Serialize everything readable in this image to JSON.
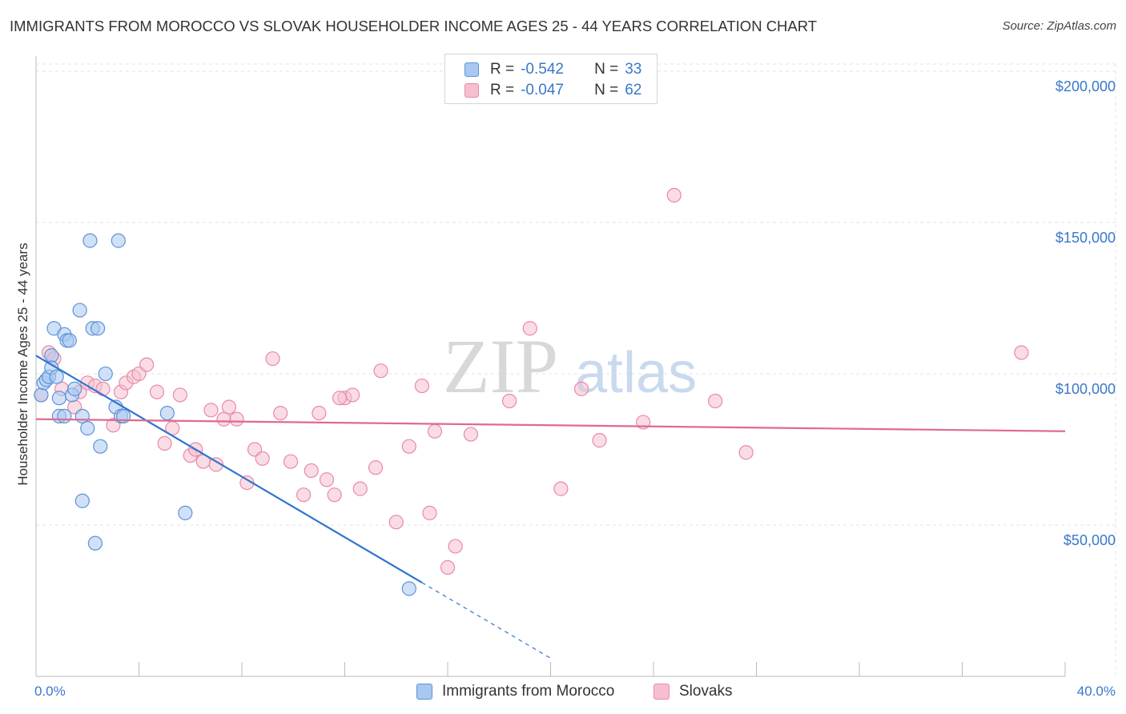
{
  "header": {
    "title": "IMMIGRANTS FROM MOROCCO VS SLOVAK HOUSEHOLDER INCOME AGES 25 - 44 YEARS CORRELATION CHART",
    "source": "Source: ZipAtlas.com"
  },
  "watermark": {
    "zip": "ZIP",
    "atlas": "atlas"
  },
  "legend": {
    "rows": [
      {
        "r_label": "R =",
        "r_value": "-0.542",
        "n_label": "N =",
        "n_value": "33"
      },
      {
        "r_label": "R =",
        "r_value": "-0.047",
        "n_label": "N =",
        "n_value": "62"
      }
    ]
  },
  "bottom_legend": [
    {
      "label": "Immigrants from Morocco"
    },
    {
      "label": "Slovaks"
    }
  ],
  "colors": {
    "blue_fill": "#a9c8f0",
    "blue_stroke": "#5b93d8",
    "blue_line": "#2f74d0",
    "pink_fill": "#f6bfd0",
    "pink_stroke": "#e88aa8",
    "pink_line": "#e06990",
    "axis_text": "#3a78c9"
  },
  "chart_data": {
    "type": "scatter",
    "title": "IMMIGRANTS FROM MOROCCO VS SLOVAK HOUSEHOLDER INCOME AGES 25 - 44 YEARS CORRELATION CHART",
    "xlabel": "",
    "ylabel": "Householder Income Ages 25 - 44 years",
    "xlim": [
      0,
      40
    ],
    "ylim": [
      0,
      205000
    ],
    "x_ticks": [
      {
        "value": 0,
        "label": "0.0%"
      },
      {
        "value": 40,
        "label": "40.0%"
      }
    ],
    "y_ticks": [
      {
        "value": 50000,
        "label": "$50,000"
      },
      {
        "value": 100000,
        "label": "$100,000"
      },
      {
        "value": 150000,
        "label": "$150,000"
      },
      {
        "value": 200000,
        "label": "$200,000"
      }
    ],
    "grid": true,
    "series": [
      {
        "name": "Immigrants from Morocco",
        "color": "blue",
        "points": [
          [
            0.2,
            93000
          ],
          [
            0.3,
            97000
          ],
          [
            0.4,
            98000
          ],
          [
            0.5,
            99000
          ],
          [
            0.6,
            106000
          ],
          [
            0.6,
            102000
          ],
          [
            0.7,
            115000
          ],
          [
            0.8,
            99000
          ],
          [
            0.9,
            92000
          ],
          [
            0.9,
            86000
          ],
          [
            1.1,
            86000
          ],
          [
            1.1,
            113000
          ],
          [
            1.2,
            111000
          ],
          [
            1.3,
            111000
          ],
          [
            1.4,
            93000
          ],
          [
            1.5,
            95000
          ],
          [
            1.7,
            121000
          ],
          [
            1.8,
            86000
          ],
          [
            2.0,
            82000
          ],
          [
            2.1,
            144000
          ],
          [
            2.2,
            115000
          ],
          [
            2.3,
            44000
          ],
          [
            2.4,
            115000
          ],
          [
            2.5,
            76000
          ],
          [
            1.8,
            58000
          ],
          [
            2.7,
            100000
          ],
          [
            3.1,
            89000
          ],
          [
            3.2,
            144000
          ],
          [
            3.3,
            86000
          ],
          [
            3.4,
            86000
          ],
          [
            5.1,
            87000
          ],
          [
            5.8,
            54000
          ],
          [
            14.5,
            29000
          ]
        ],
        "trend": {
          "x": [
            0,
            15.0
          ],
          "y": [
            106000,
            31000
          ],
          "dashed_to": {
            "x": 20,
            "y": 6000
          }
        }
      },
      {
        "name": "Slovaks",
        "color": "pink",
        "points": [
          [
            0.2,
            93000
          ],
          [
            0.5,
            107000
          ],
          [
            0.7,
            105000
          ],
          [
            1.0,
            95000
          ],
          [
            1.5,
            89000
          ],
          [
            1.7,
            94000
          ],
          [
            2.0,
            97000
          ],
          [
            2.3,
            96000
          ],
          [
            2.6,
            95000
          ],
          [
            3.0,
            83000
          ],
          [
            3.3,
            94000
          ],
          [
            3.5,
            97000
          ],
          [
            3.8,
            99000
          ],
          [
            4.0,
            100000
          ],
          [
            4.3,
            103000
          ],
          [
            4.7,
            94000
          ],
          [
            5.0,
            77000
          ],
          [
            5.3,
            82000
          ],
          [
            5.6,
            93000
          ],
          [
            6.0,
            73000
          ],
          [
            6.2,
            75000
          ],
          [
            6.5,
            71000
          ],
          [
            6.8,
            88000
          ],
          [
            7.0,
            70000
          ],
          [
            7.3,
            85000
          ],
          [
            7.5,
            89000
          ],
          [
            7.8,
            85000
          ],
          [
            8.2,
            64000
          ],
          [
            8.5,
            75000
          ],
          [
            8.8,
            72000
          ],
          [
            9.2,
            105000
          ],
          [
            9.5,
            87000
          ],
          [
            9.9,
            71000
          ],
          [
            10.4,
            60000
          ],
          [
            10.7,
            68000
          ],
          [
            11.0,
            87000
          ],
          [
            11.3,
            65000
          ],
          [
            11.6,
            60000
          ],
          [
            12.0,
            92000
          ],
          [
            12.3,
            93000
          ],
          [
            12.6,
            62000
          ],
          [
            13.2,
            69000
          ],
          [
            13.4,
            101000
          ],
          [
            14.0,
            51000
          ],
          [
            14.5,
            76000
          ],
          [
            15.3,
            54000
          ],
          [
            15.5,
            81000
          ],
          [
            15.0,
            96000
          ],
          [
            16.0,
            36000
          ],
          [
            16.3,
            43000
          ],
          [
            16.9,
            80000
          ],
          [
            18.4,
            91000
          ],
          [
            19.2,
            115000
          ],
          [
            20.4,
            62000
          ],
          [
            21.2,
            95000
          ],
          [
            21.9,
            78000
          ],
          [
            23.6,
            84000
          ],
          [
            24.8,
            159000
          ],
          [
            26.4,
            91000
          ],
          [
            27.6,
            74000
          ],
          [
            38.3,
            107000
          ],
          [
            11.8,
            92000
          ]
        ],
        "trend": {
          "x": [
            0,
            40
          ],
          "y": [
            85000,
            81000
          ]
        }
      }
    ]
  }
}
